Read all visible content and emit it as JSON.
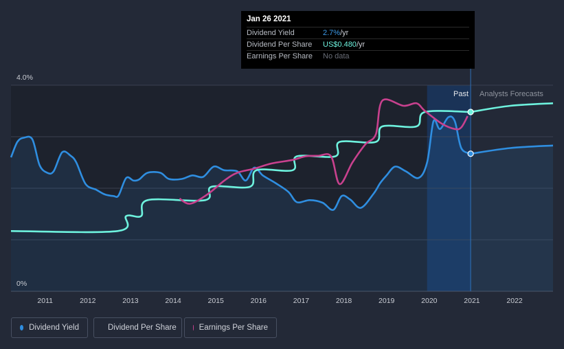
{
  "tooltip": {
    "date": "Jan 26 2021",
    "rows": [
      {
        "label": "Dividend Yield",
        "value": "2.7%",
        "unit": " /yr"
      },
      {
        "label": "Dividend Per Share",
        "value": "US$0.480",
        "unit": " /yr"
      },
      {
        "label": "Earnings Per Share",
        "value": "No data",
        "unit": ""
      }
    ]
  },
  "legend": [
    "Dividend Yield",
    "Dividend Per Share",
    "Earnings Per Share"
  ],
  "colors": {
    "background": "#232937",
    "dividend_yield": "#2f8ee0",
    "dividend_per_share": "#6ef2de",
    "earnings_per_share": "#c8418e",
    "past_region": "#1a3a66"
  },
  "chart_data": {
    "type": "line",
    "title": "",
    "y_ticks": [
      {
        "label": "4.0%",
        "value": 4.0
      },
      {
        "label": "0%",
        "value": 0
      }
    ],
    "ylim": [
      0,
      4.0
    ],
    "x_ticks": [
      "2011",
      "2012",
      "2013",
      "2014",
      "2015",
      "2016",
      "2017",
      "2018",
      "2019",
      "2020",
      "2021",
      "2022"
    ],
    "xlim": [
      2010.3,
      2023.0
    ],
    "grid": true,
    "region_labels": {
      "past": "Past",
      "forecast": "Analysts Forecasts"
    },
    "past_region_start": 2020.05,
    "current_date": 2021.07,
    "series": [
      {
        "name": "Dividend Yield",
        "axis": "percent",
        "points": [
          [
            2010.3,
            2.6
          ],
          [
            2010.45,
            2.9
          ],
          [
            2010.6,
            2.98
          ],
          [
            2010.8,
            2.95
          ],
          [
            2010.97,
            2.45
          ],
          [
            2011.15,
            2.3
          ],
          [
            2011.3,
            2.33
          ],
          [
            2011.5,
            2.7
          ],
          [
            2011.7,
            2.63
          ],
          [
            2011.83,
            2.5
          ],
          [
            2012.05,
            2.08
          ],
          [
            2012.3,
            1.97
          ],
          [
            2012.5,
            1.88
          ],
          [
            2012.7,
            1.85
          ],
          [
            2012.82,
            1.86
          ],
          [
            2013.0,
            2.2
          ],
          [
            2013.17,
            2.15
          ],
          [
            2013.3,
            2.17
          ],
          [
            2013.5,
            2.3
          ],
          [
            2013.8,
            2.3
          ],
          [
            2014.0,
            2.18
          ],
          [
            2014.3,
            2.18
          ],
          [
            2014.55,
            2.25
          ],
          [
            2014.8,
            2.22
          ],
          [
            2015.05,
            2.42
          ],
          [
            2015.3,
            2.35
          ],
          [
            2015.6,
            2.33
          ],
          [
            2015.8,
            2.15
          ],
          [
            2016.0,
            2.4
          ],
          [
            2016.2,
            2.25
          ],
          [
            2016.5,
            2.1
          ],
          [
            2016.8,
            1.93
          ],
          [
            2017.0,
            1.73
          ],
          [
            2017.3,
            1.77
          ],
          [
            2017.6,
            1.72
          ],
          [
            2017.85,
            1.58
          ],
          [
            2018.05,
            1.85
          ],
          [
            2018.25,
            1.78
          ],
          [
            2018.5,
            1.62
          ],
          [
            2018.8,
            1.9
          ],
          [
            2018.95,
            2.1
          ],
          [
            2019.1,
            2.25
          ],
          [
            2019.3,
            2.42
          ],
          [
            2019.55,
            2.33
          ],
          [
            2019.85,
            2.2
          ],
          [
            2020.05,
            2.5
          ],
          [
            2020.2,
            3.3
          ],
          [
            2020.35,
            3.15
          ],
          [
            2020.55,
            3.38
          ],
          [
            2020.7,
            3.3
          ],
          [
            2020.85,
            2.78
          ],
          [
            2021.07,
            2.67
          ],
          [
            2022.0,
            2.78
          ],
          [
            2023.0,
            2.83
          ]
        ],
        "forecast_from": 2021.07
      },
      {
        "name": "Dividend Per Share",
        "axis": "price",
        "points": [
          [
            2010.3,
            1.17
          ],
          [
            2012.8,
            1.17
          ],
          [
            2013.0,
            1.46
          ],
          [
            2013.35,
            1.46
          ],
          [
            2013.5,
            1.77
          ],
          [
            2014.85,
            1.77
          ],
          [
            2015.0,
            2.03
          ],
          [
            2015.9,
            2.03
          ],
          [
            2016.05,
            2.35
          ],
          [
            2016.9,
            2.35
          ],
          [
            2017.0,
            2.62
          ],
          [
            2017.9,
            2.62
          ],
          [
            2018.0,
            2.9
          ],
          [
            2018.85,
            2.9
          ],
          [
            2019.0,
            3.2
          ],
          [
            2019.8,
            3.2
          ],
          [
            2020.0,
            3.48
          ],
          [
            2021.07,
            3.48
          ],
          [
            2022.0,
            3.6
          ],
          [
            2023.0,
            3.65
          ]
        ],
        "forecast_from": 2021.07
      },
      {
        "name": "Earnings Per Share",
        "axis": "price",
        "points": [
          [
            2014.25,
            1.8
          ],
          [
            2014.5,
            1.7
          ],
          [
            2014.9,
            1.88
          ],
          [
            2015.3,
            2.15
          ],
          [
            2015.6,
            2.3
          ],
          [
            2016.0,
            2.38
          ],
          [
            2016.4,
            2.48
          ],
          [
            2016.9,
            2.55
          ],
          [
            2017.2,
            2.62
          ],
          [
            2017.5,
            2.63
          ],
          [
            2017.8,
            2.62
          ],
          [
            2018.0,
            2.08
          ],
          [
            2018.3,
            2.5
          ],
          [
            2018.6,
            2.85
          ],
          [
            2018.85,
            3.05
          ],
          [
            2019.0,
            3.7
          ],
          [
            2019.5,
            3.6
          ],
          [
            2019.8,
            3.65
          ],
          [
            2020.0,
            3.5
          ],
          [
            2020.4,
            3.25
          ],
          [
            2020.7,
            3.15
          ],
          [
            2020.85,
            3.18
          ],
          [
            2021.0,
            3.4
          ]
        ]
      }
    ]
  }
}
